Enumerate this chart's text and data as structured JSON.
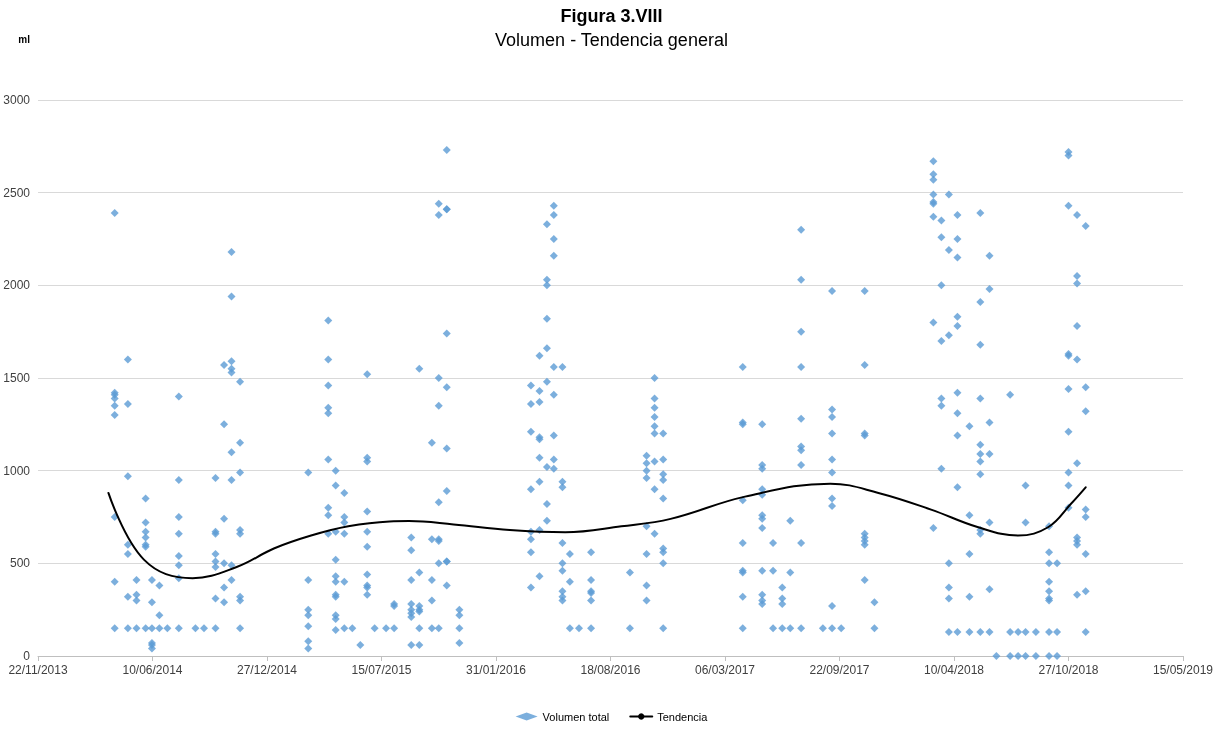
{
  "chart_data": {
    "type": "scatter",
    "title": "Figura 3.VIII",
    "subtitle": "Volumen - Tendencia general",
    "ylabel": "ml",
    "xlim": [
      "2013-11-22",
      "2019-05-15"
    ],
    "xticks": [
      {
        "value": "2013-11-22",
        "label": "22/11/2013"
      },
      {
        "value": "2014-06-10",
        "label": "10/06/2014"
      },
      {
        "value": "2014-12-27",
        "label": "27/12/2014"
      },
      {
        "value": "2015-07-15",
        "label": "15/07/2015"
      },
      {
        "value": "2016-01-31",
        "label": "31/01/2016"
      },
      {
        "value": "2016-08-18",
        "label": "18/08/2016"
      },
      {
        "value": "2017-03-06",
        "label": "06/03/2017"
      },
      {
        "value": "2017-09-22",
        "label": "22/09/2017"
      },
      {
        "value": "2018-04-10",
        "label": "10/04/2018"
      },
      {
        "value": "2018-10-27",
        "label": "27/10/2018"
      },
      {
        "value": "2019-05-15",
        "label": "15/05/2019"
      }
    ],
    "ylim": [
      0,
      3000
    ],
    "yticks": [
      0,
      500,
      1000,
      1500,
      2000,
      2500,
      3000
    ],
    "grid": "y",
    "legend": "bottom",
    "series": [
      {
        "name": "Volumen total",
        "marker": "diamond",
        "color": "#5b9bd5",
        "x": [
          "2014-04-05",
          "2014-04-05",
          "2014-04-05",
          "2014-04-05",
          "2014-04-05",
          "2014-04-05",
          "2014-04-05",
          "2014-04-05",
          "2014-04-05",
          "2014-04-28",
          "2014-04-28",
          "2014-04-28",
          "2014-04-28",
          "2014-04-28",
          "2014-04-28",
          "2014-04-28",
          "2014-05-13",
          "2014-05-13",
          "2014-05-13",
          "2014-05-13",
          "2014-05-29",
          "2014-05-29",
          "2014-05-29",
          "2014-05-29",
          "2014-05-29",
          "2014-05-29",
          "2014-05-29",
          "2014-06-09",
          "2014-06-09",
          "2014-06-09",
          "2014-06-09",
          "2014-06-09",
          "2014-06-09",
          "2014-06-22",
          "2014-06-22",
          "2014-06-22",
          "2014-07-06",
          "2014-07-26",
          "2014-07-26",
          "2014-07-26",
          "2014-07-26",
          "2014-07-26",
          "2014-07-26",
          "2014-07-26",
          "2014-07-26",
          "2014-08-24",
          "2014-09-08",
          "2014-09-28",
          "2014-09-28",
          "2014-09-28",
          "2014-09-28",
          "2014-09-28",
          "2014-09-28",
          "2014-09-28",
          "2014-09-28",
          "2014-10-13",
          "2014-10-13",
          "2014-10-13",
          "2014-10-13",
          "2014-10-13",
          "2014-10-13",
          "2014-10-26",
          "2014-10-26",
          "2014-10-26",
          "2014-10-26",
          "2014-10-26",
          "2014-10-26",
          "2014-10-26",
          "2014-10-26",
          "2014-10-26",
          "2014-11-10",
          "2014-11-10",
          "2014-11-10",
          "2014-11-10",
          "2014-11-10",
          "2014-11-10",
          "2014-11-10",
          "2014-11-10",
          "2015-03-09",
          "2015-03-09",
          "2015-03-09",
          "2015-03-09",
          "2015-03-09",
          "2015-03-09",
          "2015-03-09",
          "2015-04-13",
          "2015-04-13",
          "2015-04-13",
          "2015-04-13",
          "2015-04-13",
          "2015-04-13",
          "2015-04-13",
          "2015-04-13",
          "2015-04-13",
          "2015-04-26",
          "2015-04-26",
          "2015-04-26",
          "2015-04-26",
          "2015-04-26",
          "2015-04-26",
          "2015-04-26",
          "2015-04-26",
          "2015-04-26",
          "2015-04-26",
          "2015-04-26",
          "2015-05-11",
          "2015-05-11",
          "2015-05-11",
          "2015-05-11",
          "2015-05-11",
          "2015-05-11",
          "2015-05-25",
          "2015-06-08",
          "2015-06-20",
          "2015-06-20",
          "2015-06-20",
          "2015-06-20",
          "2015-06-20",
          "2015-06-20",
          "2015-06-20",
          "2015-06-20",
          "2015-06-20",
          "2015-06-20",
          "2015-07-03",
          "2015-07-23",
          "2015-08-06",
          "2015-08-06",
          "2015-08-06",
          "2015-09-05",
          "2015-09-05",
          "2015-09-05",
          "2015-09-05",
          "2015-09-05",
          "2015-09-05",
          "2015-09-05",
          "2015-09-05",
          "2015-09-19",
          "2015-09-19",
          "2015-09-19",
          "2015-09-19",
          "2015-09-19",
          "2015-09-19",
          "2015-09-19",
          "2015-10-11",
          "2015-10-11",
          "2015-10-11",
          "2015-10-11",
          "2015-10-11",
          "2015-10-23",
          "2015-10-23",
          "2015-10-23",
          "2015-10-23",
          "2015-10-23",
          "2015-10-23",
          "2015-10-23",
          "2015-10-23",
          "2015-10-23",
          "2015-11-06",
          "2015-11-06",
          "2015-11-06",
          "2015-11-06",
          "2015-11-06",
          "2015-11-06",
          "2015-11-06",
          "2015-11-06",
          "2015-11-06",
          "2015-11-06",
          "2015-11-28",
          "2015-11-28",
          "2015-11-28",
          "2015-11-28",
          "2016-04-01",
          "2016-04-01",
          "2016-04-01",
          "2016-04-01",
          "2016-04-01",
          "2016-04-01",
          "2016-04-01",
          "2016-04-01",
          "2016-04-16",
          "2016-04-16",
          "2016-04-16",
          "2016-04-16",
          "2016-04-16",
          "2016-04-16",
          "2016-04-16",
          "2016-04-16",
          "2016-04-16",
          "2016-04-29",
          "2016-04-29",
          "2016-04-29",
          "2016-04-29",
          "2016-04-29",
          "2016-04-29",
          "2016-04-29",
          "2016-04-29",
          "2016-04-29",
          "2016-05-11",
          "2016-05-11",
          "2016-05-11",
          "2016-05-11",
          "2016-05-11",
          "2016-05-11",
          "2016-05-11",
          "2016-05-11",
          "2016-05-11",
          "2016-05-26",
          "2016-05-26",
          "2016-05-26",
          "2016-05-26",
          "2016-05-26",
          "2016-05-26",
          "2016-05-26",
          "2016-05-26",
          "2016-05-26",
          "2016-06-08",
          "2016-06-08",
          "2016-06-08",
          "2016-06-24",
          "2016-07-15",
          "2016-07-15",
          "2016-07-15",
          "2016-07-15",
          "2016-07-15",
          "2016-07-15",
          "2016-09-21",
          "2016-09-21",
          "2016-10-20",
          "2016-10-20",
          "2016-10-20",
          "2016-10-20",
          "2016-10-20",
          "2016-10-20",
          "2016-10-20",
          "2016-10-20",
          "2016-11-03",
          "2016-11-03",
          "2016-11-03",
          "2016-11-03",
          "2016-11-03",
          "2016-11-03",
          "2016-11-03",
          "2016-11-03",
          "2016-11-03",
          "2016-11-18",
          "2016-11-18",
          "2016-11-18",
          "2016-11-18",
          "2016-11-18",
          "2016-11-18",
          "2016-11-18",
          "2016-11-18",
          "2016-11-18",
          "2017-04-06",
          "2017-04-06",
          "2017-04-06",
          "2017-04-06",
          "2017-04-06",
          "2017-04-06",
          "2017-04-06",
          "2017-04-06",
          "2017-04-06",
          "2017-05-10",
          "2017-05-10",
          "2017-05-10",
          "2017-05-10",
          "2017-05-10",
          "2017-05-10",
          "2017-05-10",
          "2017-05-10",
          "2017-05-10",
          "2017-05-10",
          "2017-05-10",
          "2017-05-10",
          "2017-05-29",
          "2017-05-29",
          "2017-05-29",
          "2017-06-14",
          "2017-06-14",
          "2017-06-14",
          "2017-06-14",
          "2017-06-28",
          "2017-06-28",
          "2017-06-28",
          "2017-07-17",
          "2017-07-17",
          "2017-07-17",
          "2017-07-17",
          "2017-07-17",
          "2017-07-17",
          "2017-07-17",
          "2017-07-17",
          "2017-07-17",
          "2017-07-17",
          "2017-08-24",
          "2017-09-09",
          "2017-09-09",
          "2017-09-09",
          "2017-09-09",
          "2017-09-09",
          "2017-09-09",
          "2017-09-09",
          "2017-09-09",
          "2017-09-09",
          "2017-09-09",
          "2017-09-25",
          "2017-11-05",
          "2017-11-05",
          "2017-11-05",
          "2017-11-05",
          "2017-11-05",
          "2017-11-05",
          "2017-11-05",
          "2017-11-05",
          "2017-11-05",
          "2017-11-22",
          "2017-11-22",
          "2018-03-05",
          "2018-03-05",
          "2018-03-05",
          "2018-03-05",
          "2018-03-05",
          "2018-03-05",
          "2018-03-05",
          "2018-03-05",
          "2018-03-05",
          "2018-03-19",
          "2018-03-19",
          "2018-03-19",
          "2018-03-19",
          "2018-03-19",
          "2018-03-19",
          "2018-03-19",
          "2018-04-01",
          "2018-04-01",
          "2018-04-01",
          "2018-04-01",
          "2018-04-01",
          "2018-04-01",
          "2018-04-01",
          "2018-04-16",
          "2018-04-16",
          "2018-04-16",
          "2018-04-16",
          "2018-04-16",
          "2018-04-16",
          "2018-04-16",
          "2018-04-16",
          "2018-04-16",
          "2018-04-16",
          "2018-05-07",
          "2018-05-07",
          "2018-05-07",
          "2018-05-07",
          "2018-05-07",
          "2018-05-26",
          "2018-05-26",
          "2018-05-26",
          "2018-05-26",
          "2018-05-26",
          "2018-05-26",
          "2018-05-26",
          "2018-05-26",
          "2018-05-26",
          "2018-05-26",
          "2018-05-26",
          "2018-06-11",
          "2018-06-11",
          "2018-06-11",
          "2018-06-11",
          "2018-06-11",
          "2018-06-11",
          "2018-06-11",
          "2018-06-23",
          "2018-07-17",
          "2018-07-17",
          "2018-07-17",
          "2018-07-31",
          "2018-07-31",
          "2018-08-13",
          "2018-08-13",
          "2018-08-13",
          "2018-08-13",
          "2018-08-31",
          "2018-08-31",
          "2018-09-23",
          "2018-09-23",
          "2018-09-23",
          "2018-09-23",
          "2018-09-23",
          "2018-09-23",
          "2018-09-23",
          "2018-09-23",
          "2018-09-23",
          "2018-10-07",
          "2018-10-07",
          "2018-10-07",
          "2018-10-27",
          "2018-10-27",
          "2018-10-27",
          "2018-10-27",
          "2018-10-27",
          "2018-10-27",
          "2018-10-27",
          "2018-10-27",
          "2018-10-27",
          "2018-10-27",
          "2018-11-11",
          "2018-11-11",
          "2018-11-11",
          "2018-11-11",
          "2018-11-11",
          "2018-11-11",
          "2018-11-11",
          "2018-11-11",
          "2018-11-11",
          "2018-11-11",
          "2018-11-26",
          "2018-11-26",
          "2018-11-26",
          "2018-11-26",
          "2018-11-26",
          "2018-11-26",
          "2018-11-26",
          "2018-11-26"
        ],
        "values": [
          2390,
          1420,
          1410,
          1390,
          1350,
          1300,
          750,
          400,
          150,
          1600,
          1360,
          970,
          600,
          550,
          320,
          150,
          410,
          330,
          300,
          150,
          850,
          720,
          670,
          640,
          600,
          590,
          150,
          410,
          290,
          150,
          70,
          60,
          40,
          380,
          220,
          150,
          150,
          1400,
          950,
          750,
          660,
          540,
          490,
          420,
          150,
          150,
          150,
          960,
          670,
          660,
          550,
          510,
          480,
          310,
          150,
          1570,
          1250,
          740,
          500,
          370,
          290,
          2180,
          1940,
          1590,
          1550,
          1530,
          1100,
          950,
          490,
          410,
          1480,
          1150,
          990,
          680,
          660,
          320,
          300,
          150,
          990,
          410,
          250,
          220,
          160,
          80,
          40,
          1810,
          1600,
          1460,
          1340,
          1310,
          1060,
          800,
          760,
          660,
          1000,
          920,
          670,
          520,
          430,
          400,
          330,
          320,
          220,
          200,
          140,
          880,
          750,
          720,
          660,
          400,
          150,
          150,
          60,
          1520,
          1070,
          1050,
          780,
          670,
          590,
          440,
          380,
          370,
          330,
          150,
          150,
          280,
          270,
          150,
          640,
          570,
          410,
          280,
          250,
          230,
          210,
          60,
          1550,
          450,
          270,
          250,
          240,
          150,
          60,
          1150,
          630,
          410,
          300,
          150,
          2440,
          2380,
          1500,
          1350,
          830,
          630,
          620,
          500,
          150,
          2730,
          2410,
          2410,
          1740,
          1450,
          1120,
          890,
          510,
          510,
          380,
          250,
          220,
          150,
          70,
          1460,
          1360,
          1210,
          900,
          670,
          630,
          560,
          370,
          1620,
          1430,
          1370,
          1180,
          1170,
          1070,
          940,
          680,
          430,
          2330,
          2030,
          2000,
          1820,
          1660,
          1480,
          1020,
          820,
          730,
          2430,
          2380,
          2250,
          2160,
          1560,
          1410,
          1190,
          1060,
          1010,
          1560,
          940,
          910,
          610,
          500,
          460,
          350,
          320,
          300,
          550,
          400,
          150,
          150,
          560,
          410,
          350,
          340,
          300,
          150,
          450,
          150,
          1080,
          1040,
          1000,
          960,
          700,
          550,
          380,
          300,
          1500,
          1390,
          1340,
          1290,
          1240,
          1200,
          1050,
          900,
          660,
          1200,
          1060,
          980,
          950,
          850,
          580,
          560,
          500,
          150,
          1560,
          1260,
          1250,
          840,
          610,
          460,
          450,
          320,
          150,
          1250,
          1030,
          1010,
          900,
          870,
          760,
          740,
          690,
          460,
          330,
          300,
          280,
          610,
          460,
          150,
          370,
          310,
          280,
          150,
          730,
          450,
          150,
          2300,
          2030,
          1750,
          1560,
          1280,
          1130,
          1110,
          1030,
          610,
          150,
          150,
          1970,
          1330,
          1290,
          1200,
          1060,
          990,
          850,
          810,
          270,
          150,
          150,
          1970,
          1570,
          1200,
          1190,
          660,
          640,
          620,
          600,
          410,
          290,
          150,
          2670,
          2600,
          2570,
          2490,
          2450,
          2440,
          2370,
          1800,
          690,
          2350,
          2260,
          2000,
          1700,
          1390,
          1350,
          1010,
          2490,
          2190,
          1730,
          500,
          370,
          310,
          130,
          2380,
          2250,
          2150,
          1830,
          1780,
          1420,
          1310,
          1190,
          910,
          130,
          1240,
          760,
          550,
          320,
          130,
          2390,
          1910,
          1680,
          1390,
          1140,
          1090,
          1050,
          980,
          680,
          660,
          130,
          2160,
          1980,
          1260,
          1090,
          720,
          360,
          130,
          0,
          1410,
          130,
          0,
          130,
          0,
          920,
          720,
          130,
          0,
          130,
          0,
          700,
          560,
          500,
          400,
          350,
          310,
          300,
          130,
          0,
          500,
          130,
          0,
          2720,
          2700,
          2430,
          1630,
          1620,
          1440,
          1210,
          990,
          920,
          800,
          2380,
          2050,
          2010,
          1780,
          1600,
          1040,
          640,
          620,
          600,
          330,
          2320,
          1450,
          1320,
          790,
          750,
          550,
          350,
          130
        ]
      },
      {
        "name": "Tendencia",
        "type": "line",
        "marker": "none",
        "line_style": "solid",
        "color": "#000000",
        "x": [
          "2014-03-25",
          "2014-05-26",
          "2014-08-19",
          "2014-11-04",
          "2015-01-08",
          "2015-03-14",
          "2015-05-18",
          "2015-07-29",
          "2015-09-01",
          "2015-11-18",
          "2016-02-24",
          "2016-05-31",
          "2016-09-06",
          "2016-12-01",
          "2017-04-10",
          "2017-09-06",
          "2017-11-29",
          "2018-03-01",
          "2018-05-21",
          "2018-07-31",
          "2018-09-22",
          "2018-10-31",
          "2018-11-26"
        ],
        "values": [
          880,
          520,
          420,
          480,
          580,
          650,
          700,
          726,
          728,
          710,
          680,
          668,
          700,
          740,
          860,
          930,
          880,
          790,
          696,
          650,
          696,
          820,
          910
        ]
      }
    ]
  }
}
